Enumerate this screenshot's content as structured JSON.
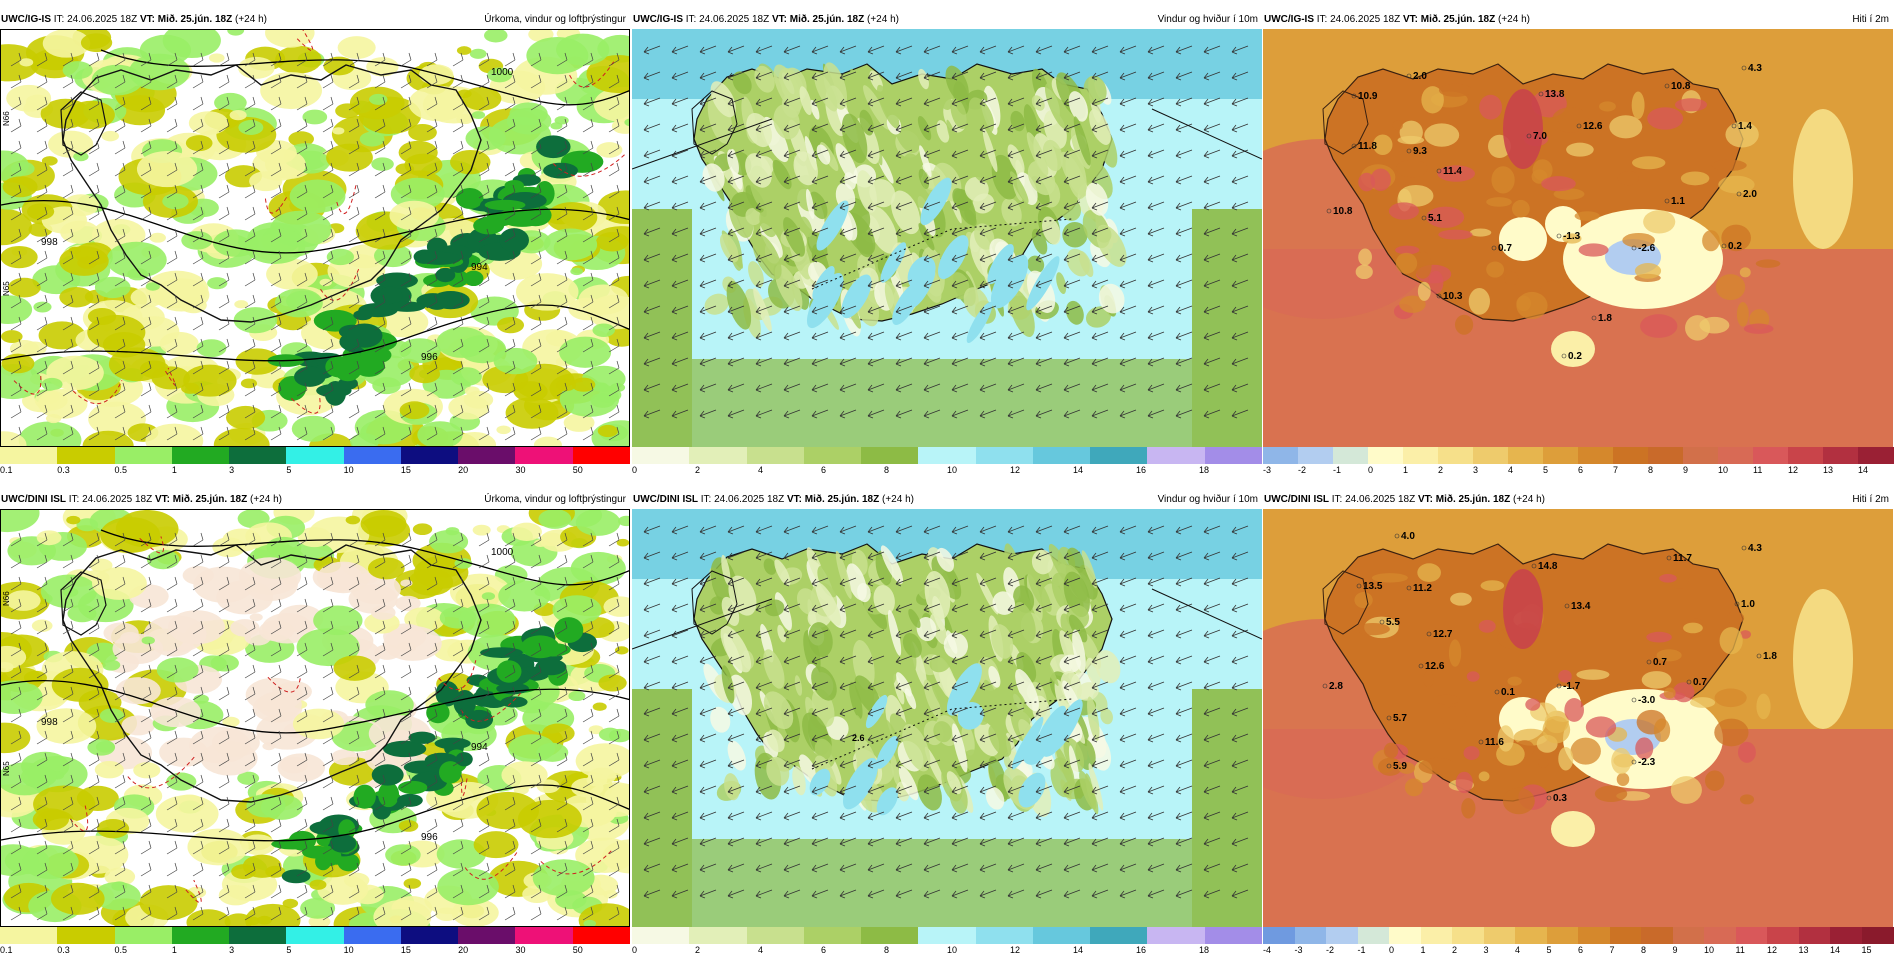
{
  "header": {
    "issue_prefix": "IT:",
    "issue_time": "24.06.2025 18Z",
    "valid_prefix": "VT:",
    "valid_time": "Mið. 25.jún. 18Z",
    "lead": "(+24 h)"
  },
  "rows": [
    {
      "model": "UWC/IG-IS"
    },
    {
      "model": "UWC/DINI ISL"
    }
  ],
  "panels": [
    {
      "id": "p1",
      "model": "UWC/IG-IS",
      "title": "Úrkoma, vindur og loftþrýstingur",
      "kind": "precip"
    },
    {
      "id": "p2",
      "model": "UWC/IG-IS",
      "title": "Vindur og hviður í 10m",
      "kind": "wind"
    },
    {
      "id": "p3",
      "model": "UWC/IG-IS",
      "title": "Hiti í 2m",
      "kind": "temp"
    },
    {
      "id": "p4",
      "model": "UWC/DINI ISL",
      "title": "Úrkoma, vindur og loftþrýstingur",
      "kind": "precip"
    },
    {
      "id": "p5",
      "model": "UWC/DINI ISL",
      "title": "Vindur og hviður í 10m",
      "kind": "wind"
    },
    {
      "id": "p6",
      "model": "UWC/DINI ISL",
      "title": "Hiti í 2m",
      "kind": "temp"
    }
  ],
  "colorbars": {
    "precip": {
      "ticks": [
        "0.1",
        "0.3",
        "0.5",
        "1",
        "3",
        "5",
        "10",
        "15",
        "20",
        "30",
        "50"
      ],
      "colors": [
        "#f5f5a0",
        "#c9cc00",
        "#99ee66",
        "#22aa22",
        "#0d6e3c",
        "#33f0e6",
        "#3a6cf0",
        "#0d0d80",
        "#6a0d6a",
        "#ee1177",
        "#ff0000"
      ]
    },
    "wind": {
      "ticks": [
        "0",
        "2",
        "4",
        "6",
        "8",
        "10",
        "12",
        "14",
        "16",
        "18"
      ],
      "colors": [
        "#f6f9e4",
        "#e2efb8",
        "#c8e08e",
        "#acd066",
        "#8dbb45",
        "#b8f4f8",
        "#8fe0ee",
        "#66c8dd",
        "#3fa8bb",
        "#c8b6f2",
        "#a38de8"
      ]
    },
    "temp_top": {
      "ticks": [
        "-3",
        "-2",
        "-1",
        "0",
        "1",
        "2",
        "3",
        "4",
        "5",
        "6",
        "7",
        "8",
        "9",
        "10",
        "11",
        "12",
        "13",
        "14"
      ],
      "colors": [
        "#8fb6e8",
        "#b2cdf0",
        "#d4e8d8",
        "#fffbc9",
        "#fbefa8",
        "#f6e08a",
        "#eecb6c",
        "#e6b54e",
        "#dd9e3a",
        "#d5882c",
        "#cc7324",
        "#c96a2a",
        "#d2704a",
        "#d86a55",
        "#d9585a",
        "#c9444a",
        "#b23040",
        "#9a2034"
      ]
    },
    "temp_bottom": {
      "ticks": [
        "-4",
        "-3",
        "-2",
        "-1",
        "0",
        "1",
        "2",
        "3",
        "4",
        "5",
        "6",
        "7",
        "8",
        "9",
        "10",
        "11",
        "12",
        "13",
        "14",
        "15"
      ],
      "colors": [
        "#6f9ae0",
        "#8fb6e8",
        "#b2cdf0",
        "#d4e8d8",
        "#fffbc9",
        "#fbefa8",
        "#f6e08a",
        "#eecb6c",
        "#e6b54e",
        "#dd9e3a",
        "#d5882c",
        "#cc7324",
        "#c96a2a",
        "#d2704a",
        "#d86a55",
        "#d9585a",
        "#c9444a",
        "#b23040",
        "#9a2034",
        "#8a1a2c"
      ]
    }
  },
  "temp_labels": {
    "p3": [
      "2.0",
      "10.9",
      "11.8",
      "9.3",
      "11.4",
      "7.0",
      "13.8",
      "12.6",
      "10.8",
      "4.3",
      "1.4",
      "10.8",
      "5.1",
      "0.7",
      "-1.3",
      "1.1",
      "2.0",
      "-2.6",
      "0.2",
      "10.3",
      "1.8",
      "0.2"
    ],
    "p6": [
      "4.0",
      "13.5",
      "11.2",
      "14.8",
      "13.4",
      "11.7",
      "4.3",
      "1.0",
      "5.5",
      "12.7",
      "12.6",
      "0.7",
      "1.8",
      "2.8",
      "0.1",
      "-1.7",
      "-3.0",
      "0.7",
      "5.7",
      "11.6",
      "5.9",
      "-2.3",
      "0.3"
    ]
  },
  "precip_labels": {
    "isobars": [
      "998",
      "994",
      "996",
      "1000"
    ],
    "grid": [
      "N66",
      "N65",
      "N64",
      "W5"
    ]
  },
  "wind_labels": {
    "p5": [
      "2.6"
    ]
  }
}
